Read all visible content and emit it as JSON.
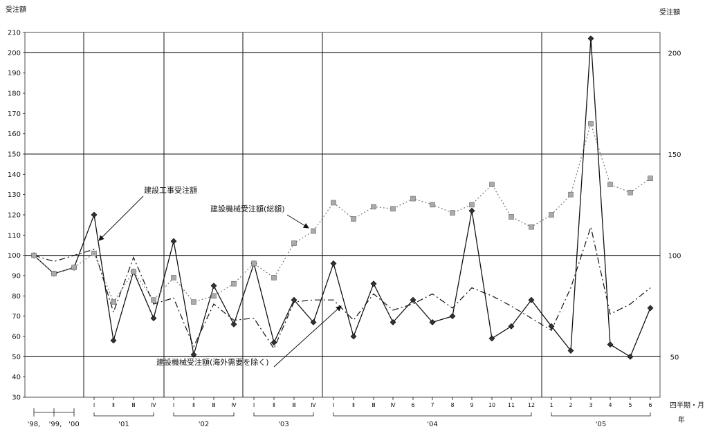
{
  "chart_data": {
    "type": "line",
    "y_axis_left": {
      "title": "受注額",
      "range": [
        30,
        210
      ],
      "ticks": [
        30,
        40,
        50,
        60,
        70,
        80,
        90,
        100,
        110,
        120,
        130,
        140,
        150,
        160,
        170,
        180,
        190,
        200,
        210
      ]
    },
    "y_axis_right": {
      "title": "受注額",
      "ticks": [
        "50",
        "100",
        "150",
        "200"
      ]
    },
    "x_axis": {
      "period_title": "四半期・月",
      "year_title": "年",
      "labels": [
        "'98",
        "'99",
        "'00",
        "Ⅰ",
        "Ⅱ",
        "Ⅲ",
        "Ⅳ",
        "Ⅰ",
        "Ⅱ",
        "Ⅲ",
        "Ⅳ",
        "Ⅰ",
        "Ⅱ",
        "Ⅲ",
        "Ⅳ",
        "Ⅰ",
        "Ⅱ",
        "Ⅲ",
        "Ⅳ",
        "6",
        "7",
        "8",
        "9",
        "10",
        "11",
        "12",
        "1",
        "2",
        "3",
        "4",
        "5",
        "6"
      ],
      "year_labels": [
        "'98,",
        "'99,",
        "'00",
        "'01",
        "'02",
        "'03",
        "'04",
        "'05"
      ]
    },
    "series": [
      {
        "name": "建設工事受注額",
        "style": "solid",
        "marker": "diamond",
        "color": "#111111",
        "values": [
          100,
          91,
          94,
          120,
          58,
          92,
          69,
          107,
          51,
          85,
          66,
          96,
          57,
          78,
          67,
          96,
          60,
          86,
          67,
          78,
          67,
          70,
          122,
          59,
          65,
          78,
          65,
          53,
          207,
          56,
          50,
          74
        ]
      },
      {
        "name": "建設機械受注額(総額)",
        "style": "dotted",
        "marker": "square",
        "color": "#777777",
        "values": [
          100,
          91,
          94,
          101,
          77,
          92,
          78,
          89,
          77,
          80,
          86,
          96,
          89,
          106,
          112,
          126,
          118,
          124,
          123,
          128,
          125,
          121,
          125,
          135,
          119,
          114,
          120,
          130,
          165,
          135,
          131,
          138
        ]
      },
      {
        "name": "建設機械受注額(海外需要を除く)",
        "style": "dashdot",
        "marker": "none",
        "color": "#111111",
        "values": [
          100,
          97,
          100,
          103,
          72,
          99,
          76,
          79,
          55,
          76,
          68,
          69,
          54,
          77,
          78,
          78,
          68,
          81,
          73,
          76,
          81,
          74,
          84,
          80,
          75,
          69,
          63,
          84,
          114,
          71,
          76,
          84
        ]
      }
    ],
    "annotations": [
      {
        "text": "建設工事受注額"
      },
      {
        "text": "建設機械受注額(総額)"
      },
      {
        "text": "建設機械受注額(海外需要を除く)"
      }
    ],
    "grid": {
      "horizontal_major": [
        50,
        100,
        150,
        200
      ],
      "vertical_year_separators": true
    }
  }
}
